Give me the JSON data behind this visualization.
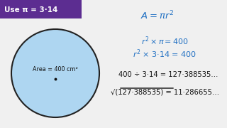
{
  "bg_color": "#f0f0f0",
  "purple_box_color": "#5c2d91",
  "purple_box_text": "Use π = 3·14",
  "circle_fill": "#aed6f1",
  "circle_edge": "#222222",
  "circle_label": "Area = 400 cm²",
  "text_blue": "#2271c3",
  "text_dark": "#111111",
  "line3": "400 ÷ 3·14 = 127·388535…",
  "line4": "√(127·388535) = 11·286655…"
}
